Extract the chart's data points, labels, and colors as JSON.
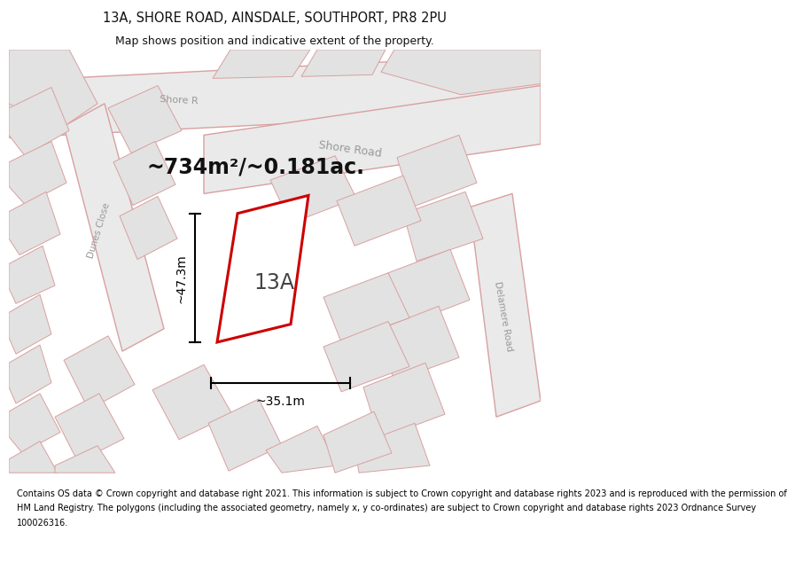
{
  "title_line1": "13A, SHORE ROAD, AINSDALE, SOUTHPORT, PR8 2PU",
  "title_line2": "Map shows position and indicative extent of the property.",
  "area_text": "~734m²/~0.181ac.",
  "label_13A": "13A",
  "dim_vertical": "~47.3m",
  "dim_horizontal": "~35.1m",
  "footer_lines": [
    "Contains OS data © Crown copyright and database right 2021. This information is subject to Crown copyright and database rights 2023 and is reproduced with the permission of",
    "HM Land Registry. The polygons (including the associated geometry, namely x, y co-ordinates) are subject to Crown copyright and database rights 2023 Ordnance Survey",
    "100026316."
  ],
  "bg_color": "#f7f4f4",
  "road_fill": "#eaeaea",
  "road_edge": "#d9a0a0",
  "bld_fill": "#e2e2e2",
  "bld_edge": "#d9a0a0",
  "plot_fill": "#ffffff",
  "plot_edge": "#cc0000",
  "label_color": "#999999",
  "dim_color": "#000000",
  "text_color": "#111111",
  "fig_width": 6.0,
  "fig_height": 6.25,
  "title_fontsize": 10.5,
  "subtitle_fontsize": 9.0,
  "area_fontsize": 17,
  "label_fontsize": 17,
  "dim_fontsize": 10,
  "footer_fontsize": 7.0
}
